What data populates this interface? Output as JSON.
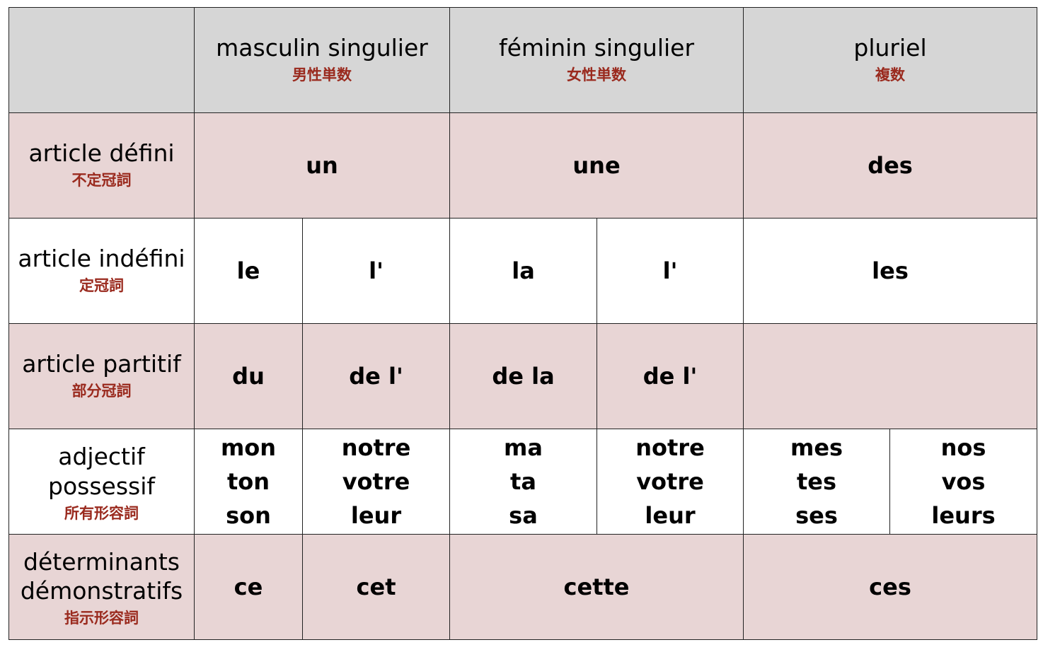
{
  "colors": {
    "header_bg": "#d6d6d6",
    "pink_row_bg": "#e8d5d5",
    "japanese_text": "#9a2a1e"
  },
  "header": {
    "masc": {
      "fr": "masculin singulier",
      "jp": "男性単数"
    },
    "fem": {
      "fr": "féminin singulier",
      "jp": "女性単数"
    },
    "plur": {
      "fr": "pluriel",
      "jp": "複数"
    }
  },
  "rows": {
    "defini": {
      "fr": "article défini",
      "jp": "不定冠詞",
      "masc": "un",
      "fem": "une",
      "plur": "des"
    },
    "indefini": {
      "fr": "article indéfini",
      "jp": "定冠詞",
      "masc1": "le",
      "masc2": "l'",
      "fem1": "la",
      "fem2": "l'",
      "plur": "les"
    },
    "partitif": {
      "fr": "article partitif",
      "jp": "部分冠詞",
      "masc1": "du",
      "masc2": "de l'",
      "fem1": "de la",
      "fem2": "de l'"
    },
    "possessif": {
      "fr1": "adjectif",
      "fr2": "possessif",
      "jp": "所有形容詞",
      "masc1": [
        "mon",
        "ton",
        "son"
      ],
      "masc2": [
        "notre",
        "votre",
        "leur"
      ],
      "fem1": [
        "ma",
        "ta",
        "sa"
      ],
      "fem2": [
        "notre",
        "votre",
        "leur"
      ],
      "plur1": [
        "mes",
        "tes",
        "ses"
      ],
      "plur2": [
        "nos",
        "vos",
        "leurs"
      ]
    },
    "demonstratif": {
      "fr1": "déterminants",
      "fr2": "démonstratifs",
      "jp": "指示形容詞",
      "masc1": "ce",
      "masc2": "cet",
      "fem": "cette",
      "plur": "ces"
    }
  }
}
